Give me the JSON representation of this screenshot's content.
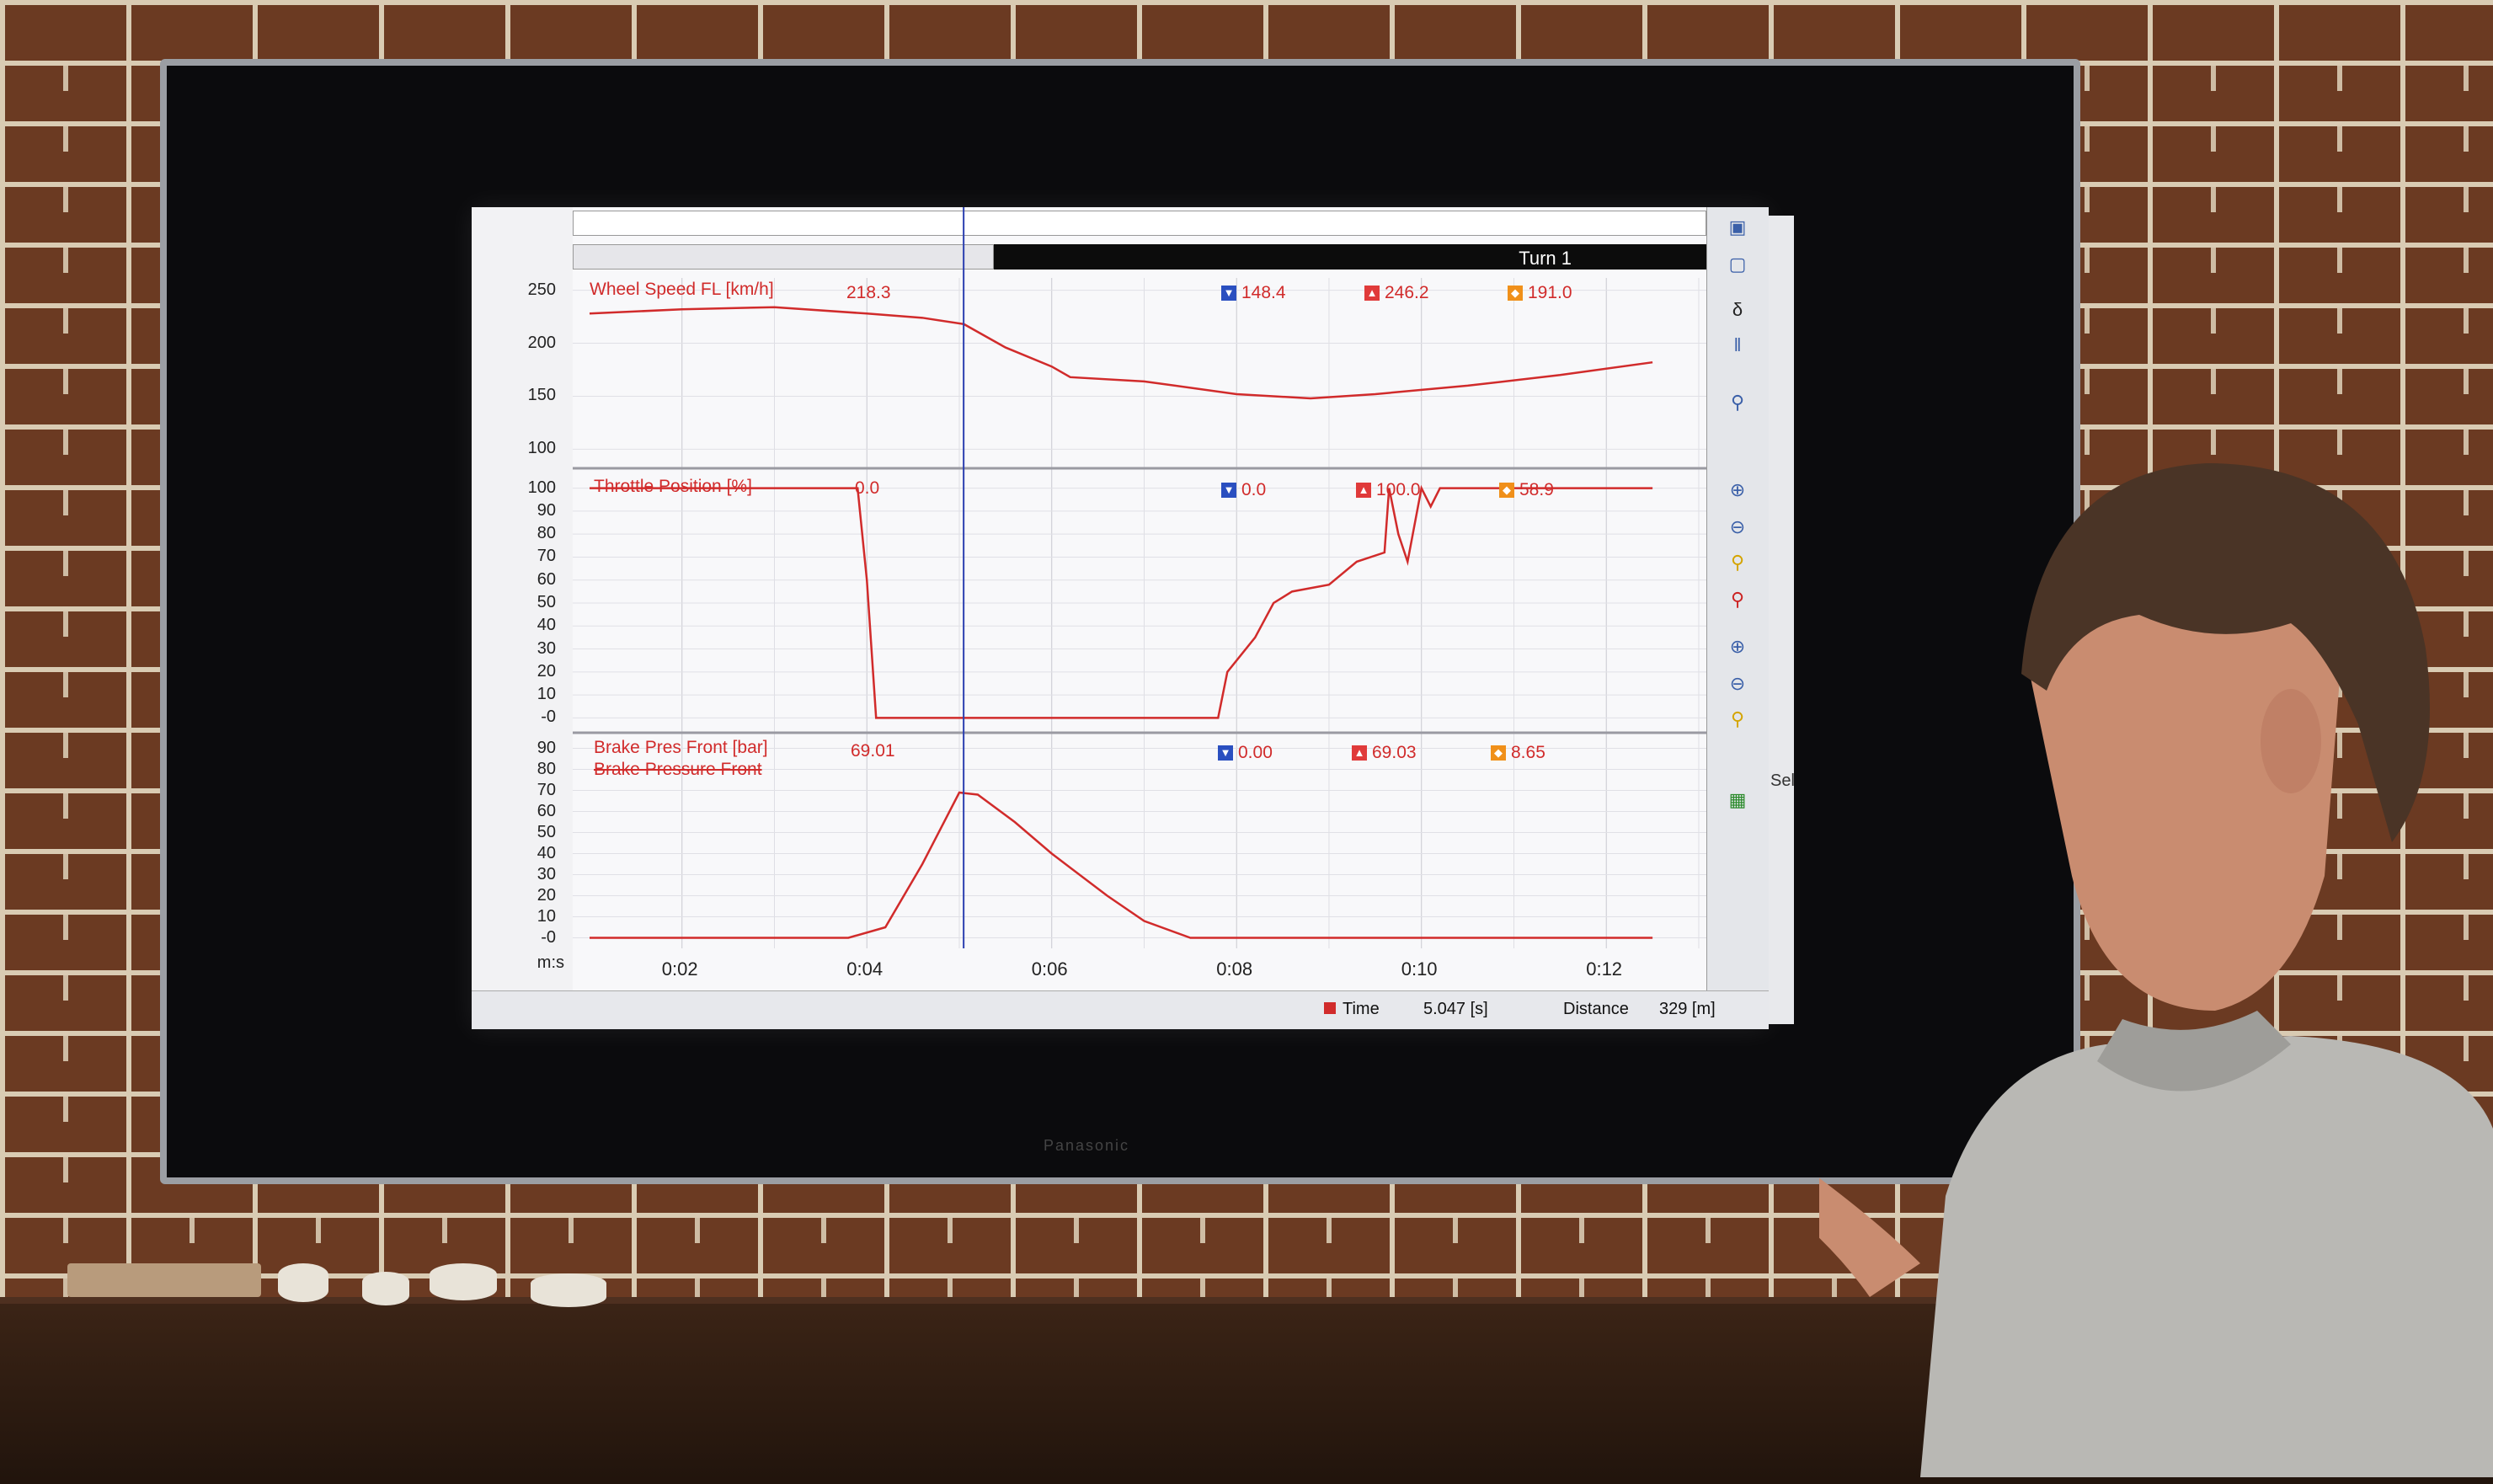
{
  "scene": {
    "type": "photo",
    "wall": "brick",
    "tv_brand": "Panasonic"
  },
  "telemetry_screen": {
    "segment_label": "Turn 1",
    "channels": [
      {
        "name": "Wheel Speed FL [km/h]",
        "cursor_value": "218.3",
        "min": "148.4",
        "max": "246.2",
        "avg": "191.0",
        "y_ticks": [
          "250",
          "200",
          "150",
          "100"
        ]
      },
      {
        "name": "Throttle Position [%]",
        "cursor_value": "0.0",
        "min": "0.0",
        "max": "100.0",
        "avg": "58.9",
        "y_ticks": [
          "100",
          "90",
          "80",
          "70",
          "60",
          "50",
          "40",
          "30",
          "20",
          "10",
          "-0"
        ]
      },
      {
        "name": "Brake Pres Front [bar]",
        "sub_name": "Brake Pressure Front",
        "cursor_value": "69.01",
        "min": "0.00",
        "max": "69.03",
        "avg": "8.65",
        "y_ticks": [
          "90",
          "80",
          "70",
          "60",
          "50",
          "40",
          "30",
          "20",
          "10",
          "-0"
        ]
      }
    ],
    "x_axis": {
      "unit": "m:s",
      "ticks": [
        "0:02",
        "0:04",
        "0:06",
        "0:08",
        "0:10",
        "0:12"
      ]
    },
    "status": {
      "time_label": "Time",
      "time_value": "5.047 [s]",
      "distance_label": "Distance",
      "distance_value": "329 [m]"
    },
    "side_panel_fragment": "Sel",
    "colors": {
      "trace": "#d12b2b",
      "cursor": "#2b3fb0",
      "min_icon": "#2a4fc0",
      "max_icon": "#e03a3a",
      "avg_icon": "#f0901a"
    }
  },
  "chart_data": {
    "type": "line",
    "x_unit": "m:s",
    "x_ticks": [
      "0:02",
      "0:04",
      "0:06",
      "0:08",
      "0:10",
      "0:12"
    ],
    "cursor_x": "0:05.047",
    "series": [
      {
        "name": "Wheel Speed FL [km/h]",
        "x": [
          1.0,
          2.0,
          3.0,
          4.0,
          4.6,
          5.05,
          5.5,
          6.0,
          6.2,
          7.0,
          8.0,
          8.8,
          9.5,
          10.5,
          11.5,
          12.5
        ],
        "y": [
          228,
          232,
          234,
          228,
          224,
          218,
          196,
          178,
          168,
          164,
          152,
          148,
          152,
          160,
          170,
          182
        ],
        "ylim": [
          90,
          260
        ]
      },
      {
        "name": "Throttle Position [%]",
        "x": [
          1.0,
          3.9,
          4.0,
          4.1,
          5.05,
          7.8,
          7.9,
          8.2,
          8.4,
          8.6,
          9.0,
          9.3,
          9.6,
          9.65,
          9.75,
          9.85,
          10.0,
          10.1,
          10.2,
          12.5
        ],
        "y": [
          100,
          100,
          60,
          0,
          0,
          0,
          20,
          35,
          50,
          55,
          58,
          68,
          72,
          100,
          80,
          68,
          100,
          92,
          100,
          100
        ],
        "ylim": [
          -5,
          105
        ]
      },
      {
        "name": "Brake Pres Front [bar]",
        "x": [
          1.0,
          3.8,
          4.2,
          4.6,
          5.0,
          5.2,
          5.6,
          6.0,
          6.6,
          7.0,
          7.5,
          12.5
        ],
        "y": [
          0,
          0,
          5,
          35,
          69,
          68,
          55,
          40,
          20,
          8,
          0,
          0
        ],
        "ylim": [
          -5,
          95
        ]
      }
    ]
  }
}
